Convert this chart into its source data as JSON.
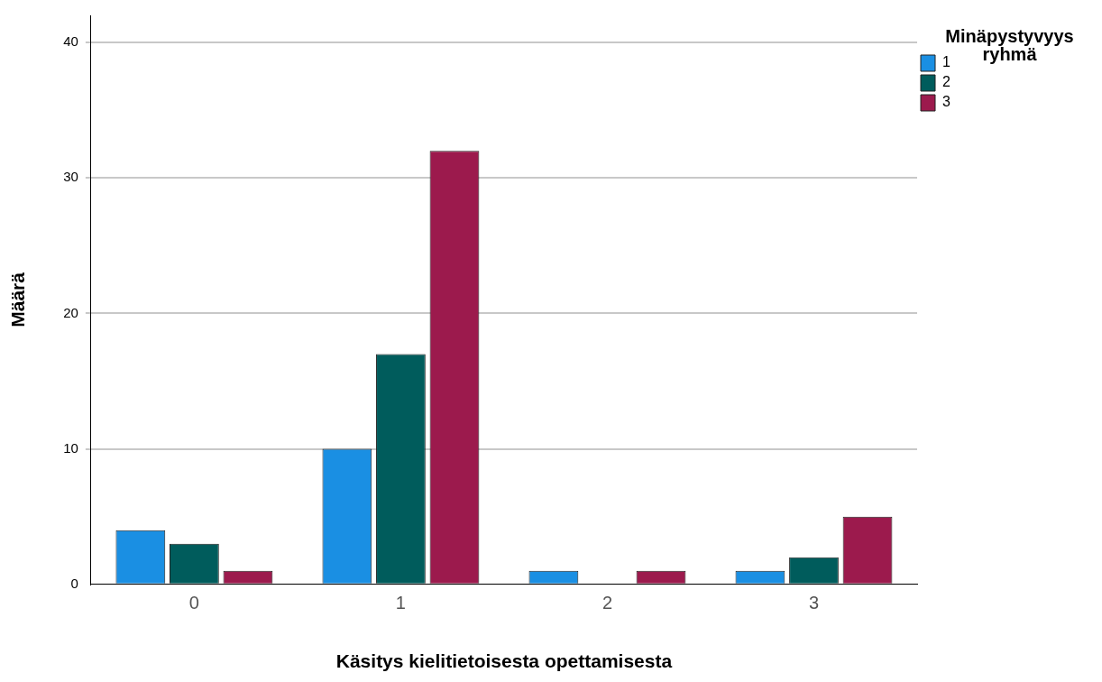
{
  "chart_data": {
    "type": "bar",
    "xlabel": "Käsitys kielitietoisesta opettamisesta",
    "ylabel": "Määrä",
    "legend_title": "Minäpystyvyys ryhmä",
    "categories": [
      "0",
      "1",
      "2",
      "3"
    ],
    "series": [
      {
        "name": "1",
        "color": "#1a8fe3",
        "values": [
          4,
          10,
          1,
          1
        ]
      },
      {
        "name": "2",
        "color": "#005c5c",
        "values": [
          3,
          17,
          0,
          2
        ]
      },
      {
        "name": "3",
        "color": "#9c1a4d",
        "values": [
          1,
          32,
          1,
          5
        ]
      }
    ],
    "ylim": [
      0,
      42
    ],
    "yticks": [
      0,
      10,
      20,
      30,
      40
    ],
    "grid": "y",
    "legend": "top right"
  }
}
